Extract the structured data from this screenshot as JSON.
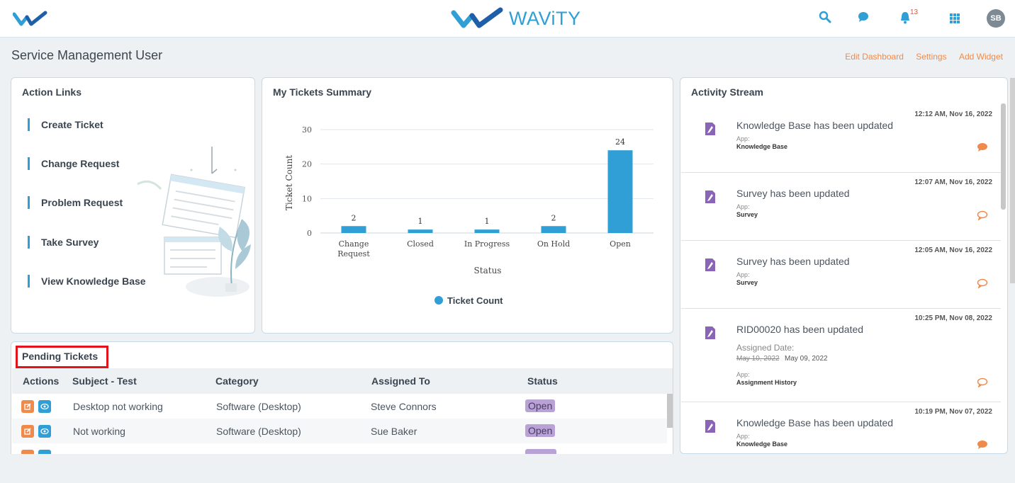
{
  "app": {
    "brand": "WAViTY",
    "notifications_count": "13",
    "avatar_initials": "SB"
  },
  "page": {
    "title": "Service Management User",
    "links": [
      "Edit Dashboard",
      "Settings",
      "Add Widget"
    ]
  },
  "action_links": {
    "title": "Action Links",
    "items": [
      "Create Ticket",
      "Change Request",
      "Problem Request",
      "Take Survey",
      "View Knowledge Base"
    ]
  },
  "tickets_summary": {
    "title": "My Tickets Summary"
  },
  "chart_data": {
    "type": "bar",
    "categories": [
      "Change Request",
      "Closed",
      "In Progress",
      "On Hold",
      "Open"
    ],
    "values": [
      2,
      1,
      1,
      2,
      24
    ],
    "xlabel": "Status",
    "ylabel": "Ticket Count",
    "ylim": [
      0,
      30
    ],
    "yticks": [
      0,
      10,
      20,
      30
    ],
    "legend": [
      "Ticket Count"
    ],
    "legend_position": "bottom",
    "color": "#2f9fd6"
  },
  "activity": {
    "title": "Activity Stream",
    "items": [
      {
        "time": "12:12 AM, Nov 16, 2022",
        "title": "Knowledge Base has been updated",
        "app_label": "App:",
        "app": "Knowledge Base",
        "comment": "filled"
      },
      {
        "time": "12:07 AM, Nov 16, 2022",
        "title": "Survey has been updated",
        "app_label": "App:",
        "app": "Survey",
        "comment": "outline"
      },
      {
        "time": "12:05 AM, Nov 16, 2022",
        "title": "Survey has been updated",
        "app_label": "App:",
        "app": "Survey",
        "comment": "outline"
      },
      {
        "time": "10:25 PM, Nov 08, 2022",
        "title": "RID00020 has been updated",
        "assigned_label": "Assigned Date:",
        "old_date": "May 10, 2022",
        "new_date": "May 09, 2022",
        "app_label": "App:",
        "app": "Assignment History",
        "comment": "outline"
      },
      {
        "time": "10:19 PM, Nov 07, 2022",
        "title": "Knowledge Base has been updated",
        "app_label": "App:",
        "app": "Knowledge Base",
        "comment": "filled"
      }
    ]
  },
  "pending": {
    "title": "Pending Tickets",
    "columns": [
      "Actions",
      "Subject - Test",
      "Category",
      "Assigned To",
      "Status"
    ],
    "rows": [
      {
        "subject": "Desktop not working",
        "category": "Software (Desktop)",
        "assigned": "Steve Connors",
        "status": "Open"
      },
      {
        "subject": "Not working",
        "category": "Software (Desktop)",
        "assigned": "Sue Baker",
        "status": "Open"
      }
    ]
  }
}
